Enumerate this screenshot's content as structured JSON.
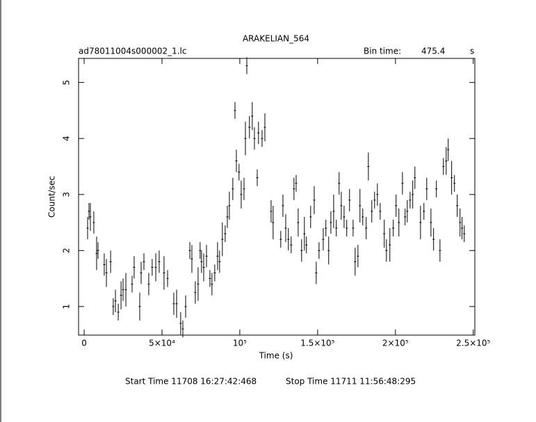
{
  "chart_data": {
    "type": "scatter",
    "title": "ARAKELIAN_564",
    "subtitle": "ad78011004s000002_1.lc",
    "bin_time_label": "Bin time:",
    "bin_time": 475.4,
    "bin_time_unit": "s",
    "xlabel": "Time (s)",
    "ylabel": "Count/sec",
    "start_time": "Start Time 11708 16:27:42:468",
    "stop_time": "Stop Time 11711 11:56:48:295",
    "color": "#000000",
    "xlim": [
      -3600,
      251000
    ],
    "ylim": [
      0.49,
      5.43
    ],
    "xticks": [
      0,
      {
        "value": 50000,
        "label": "5×10⁴"
      },
      {
        "value": 100000,
        "label": "10⁵"
      },
      {
        "value": 150000,
        "label": "1.5×10⁵"
      },
      {
        "value": 200000,
        "label": "2×10⁵"
      },
      {
        "value": 250000,
        "label": "2.5×10⁵"
      }
    ],
    "yticks": [
      1,
      2,
      3,
      4,
      5
    ],
    "x": [
      2200,
      3100,
      4000,
      6200,
      8000,
      8900,
      12900,
      14300,
      17000,
      18700,
      20100,
      21900,
      23700,
      25000,
      26800,
      30800,
      32100,
      35700,
      36600,
      38400,
      41500,
      43700,
      46000,
      48200,
      51300,
      53600,
      57600,
      59400,
      62000,
      63400,
      65200,
      67900,
      69200,
      71400,
      73200,
      74500,
      75400,
      76800,
      78600,
      80800,
      82100,
      83900,
      85700,
      87000,
      88800,
      90600,
      92000,
      93300,
      95500,
      96900,
      97800,
      99500,
      100900,
      102700,
      103600,
      104500,
      106200,
      108000,
      109400,
      111200,
      112000,
      114300,
      116100,
      120100,
      121400,
      126300,
      127700,
      129500,
      131200,
      133000,
      134800,
      136200,
      137500,
      139700,
      141500,
      142800,
      145500,
      147800,
      149100,
      150900,
      153600,
      155300,
      157100,
      158500,
      160300,
      162000,
      163800,
      165200,
      167000,
      168700,
      170500,
      172800,
      174100,
      175900,
      177200,
      179000,
      181200,
      182600,
      184800,
      186600,
      188400,
      190200,
      192800,
      194200,
      196400,
      198600,
      200400,
      202200,
      204500,
      206200,
      207600,
      209400,
      211100,
      212500,
      216100,
      218300,
      220100,
      222800,
      224500,
      226300,
      228600,
      230800,
      232600,
      233900,
      236100,
      237900,
      239700,
      241500,
      242800,
      244200
    ],
    "values": [
      2.4,
      2.7,
      2.6,
      2.5,
      1.95,
      2.0,
      1.75,
      1.6,
      1.8,
      1.0,
      1.1,
      0.9,
      1.2,
      1.3,
      1.3,
      1.4,
      1.7,
      1.0,
      1.6,
      1.8,
      1.4,
      1.7,
      1.7,
      1.8,
      1.6,
      1.5,
      1.05,
      1.05,
      0.7,
      0.6,
      1.0,
      2.0,
      1.85,
      1.25,
      1.4,
      2.0,
      1.8,
      1.7,
      1.9,
      1.5,
      1.4,
      1.6,
      1.9,
      1.8,
      2.2,
      2.3,
      2.6,
      2.8,
      3.1,
      4.5,
      3.6,
      3.4,
      3.0,
      3.1,
      4.0,
      5.3,
      4.2,
      4.4,
      4.0,
      3.3,
      4.1,
      4.0,
      4.2,
      2.7,
      2.5,
      2.2,
      2.8,
      2.4,
      2.2,
      2.1,
      3.1,
      3.2,
      2.5,
      2.0,
      2.3,
      2.1,
      2.6,
      2.9,
      1.6,
      2.0,
      2.2,
      2.4,
      2.0,
      2.5,
      2.7,
      2.4,
      3.2,
      2.8,
      2.6,
      2.4,
      2.9,
      2.4,
      1.8,
      1.9,
      2.8,
      2.6,
      2.4,
      3.5,
      2.7,
      2.9,
      3.0,
      2.7,
      2.3,
      2.0,
      2.1,
      2.4,
      2.8,
      2.5,
      3.2,
      2.6,
      2.7,
      2.9,
      3.0,
      3.3,
      2.5,
      2.7,
      3.1,
      2.5,
      2.2,
      3.1,
      2.0,
      3.5,
      3.6,
      3.8,
      3.3,
      3.2,
      2.8,
      2.5,
      2.4,
      2.3
    ],
    "errors": [
      0.2,
      0.15,
      0.25,
      0.2,
      0.3,
      0.15,
      0.2,
      0.25,
      0.2,
      0.15,
      0.2,
      0.15,
      0.25,
      0.2,
      0.3,
      0.15,
      0.2,
      0.25,
      0.2,
      0.15,
      0.2,
      0.15,
      0.25,
      0.2,
      0.3,
      0.15,
      0.2,
      0.25,
      0.2,
      0.15,
      0.2,
      0.15,
      0.25,
      0.2,
      0.3,
      0.15,
      0.2,
      0.25,
      0.2,
      0.15,
      0.2,
      0.15,
      0.25,
      0.2,
      0.3,
      0.15,
      0.2,
      0.25,
      0.2,
      0.15,
      0.2,
      0.15,
      0.25,
      0.2,
      0.3,
      0.15,
      0.2,
      0.25,
      0.2,
      0.15,
      0.2,
      0.15,
      0.25,
      0.2,
      0.3,
      0.15,
      0.2,
      0.25,
      0.2,
      0.15,
      0.2,
      0.15,
      0.25,
      0.2,
      0.3,
      0.15,
      0.2,
      0.25,
      0.2,
      0.15,
      0.2,
      0.15,
      0.25,
      0.2,
      0.3,
      0.15,
      0.2,
      0.25,
      0.2,
      0.15,
      0.2,
      0.15,
      0.25,
      0.2,
      0.3,
      0.15,
      0.2,
      0.25,
      0.2,
      0.15,
      0.2,
      0.15,
      0.25,
      0.2,
      0.3,
      0.15,
      0.2,
      0.25,
      0.2,
      0.15,
      0.2,
      0.15,
      0.25,
      0.2,
      0.3,
      0.15,
      0.2,
      0.25,
      0.2,
      0.15,
      0.2,
      0.15,
      0.25,
      0.2,
      0.3,
      0.15,
      0.2,
      0.25,
      0.2,
      0.15
    ]
  }
}
